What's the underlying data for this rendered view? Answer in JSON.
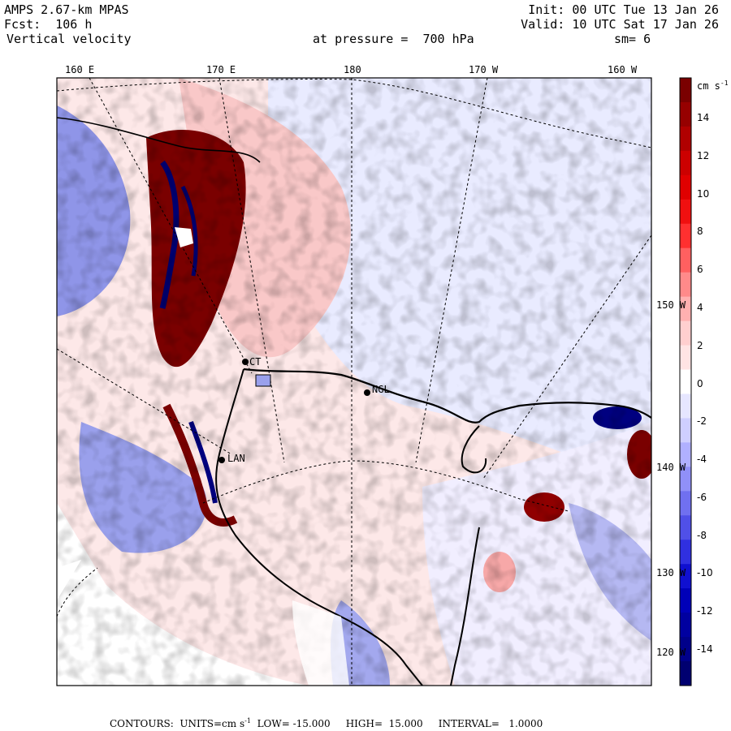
{
  "header": {
    "model": "AMPS 2.67-km MPAS",
    "init": "Init: 00 UTC Tue 13 Jan 26",
    "fcst_label": "Fcst:",
    "fcst_value": "106 h",
    "valid": "Valid: 10 UTC Sat 17 Jan 26",
    "field": "Vertical velocity",
    "pressure": "at pressure =  700 hPa",
    "smooth": "sm= 6"
  },
  "longitude_labels": [
    "160 E",
    "170 E",
    "180",
    "170 W",
    "160 W"
  ],
  "latitude_labels": [
    "150 W",
    "140 W",
    "130 W",
    "120 W"
  ],
  "stations": [
    "NGL",
    "LAN",
    "CT"
  ],
  "colorbar": {
    "units": "cm s",
    "units_exp": "-1",
    "tick_labels": [
      "14",
      "12",
      "10",
      "8",
      "6",
      "4",
      "2",
      "0",
      "-2",
      "-4",
      "-6",
      "-8",
      "-10",
      "-12",
      "-14"
    ],
    "colors_top_to_bottom": [
      "#7a0000",
      "#960000",
      "#b00000",
      "#cc0000",
      "#e00000",
      "#f01010",
      "#ff3030",
      "#ff6060",
      "#ff8a8a",
      "#ffb0b0",
      "#ffcfcf",
      "#ffe4e4",
      "#ffffff",
      "#e6e6ff",
      "#cfcfff",
      "#b0b0ff",
      "#9090f8",
      "#7070f0",
      "#5050e8",
      "#3030e0",
      "#1010d0",
      "#0000b8",
      "#0000a0",
      "#00008a",
      "#000070"
    ]
  },
  "footer": {
    "label": "CONTOURS:",
    "units": "UNITS=cm s",
    "units_exp": "-1",
    "low": "LOW= -15.000",
    "high": "HIGH=  15.000",
    "interval": "INTERVAL=   1.0000"
  }
}
